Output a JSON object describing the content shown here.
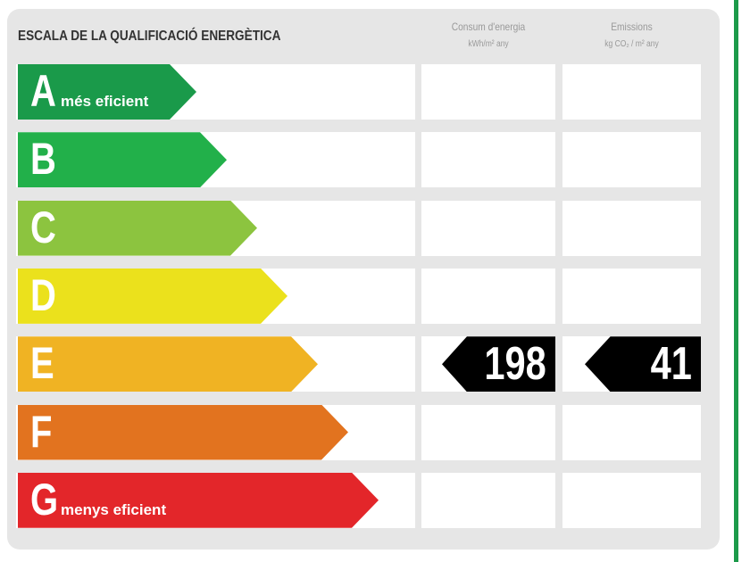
{
  "title": "ESCALA DE LA QUALIFICACIÓ ENERGÈTICA",
  "columns": [
    {
      "label": "Consum d'energia",
      "unit": "kWh/m² any"
    },
    {
      "label": "Emissions",
      "unit": "kg CO₂ / m² any"
    }
  ],
  "classes": [
    {
      "letter": "A",
      "label": "més eficient",
      "color": "#1a9a4a"
    },
    {
      "letter": "B",
      "label": "",
      "color": "#22b04a"
    },
    {
      "letter": "C",
      "label": "",
      "color": "#8cc43f"
    },
    {
      "letter": "D",
      "label": "",
      "color": "#ebe11c"
    },
    {
      "letter": "E",
      "label": "",
      "color": "#f0b323"
    },
    {
      "letter": "F",
      "label": "",
      "color": "#e2731f"
    },
    {
      "letter": "G",
      "label": "menys eficient",
      "color": "#e3262a"
    }
  ],
  "rating": {
    "class": "E",
    "consumption": "198",
    "emissions": "41"
  }
}
